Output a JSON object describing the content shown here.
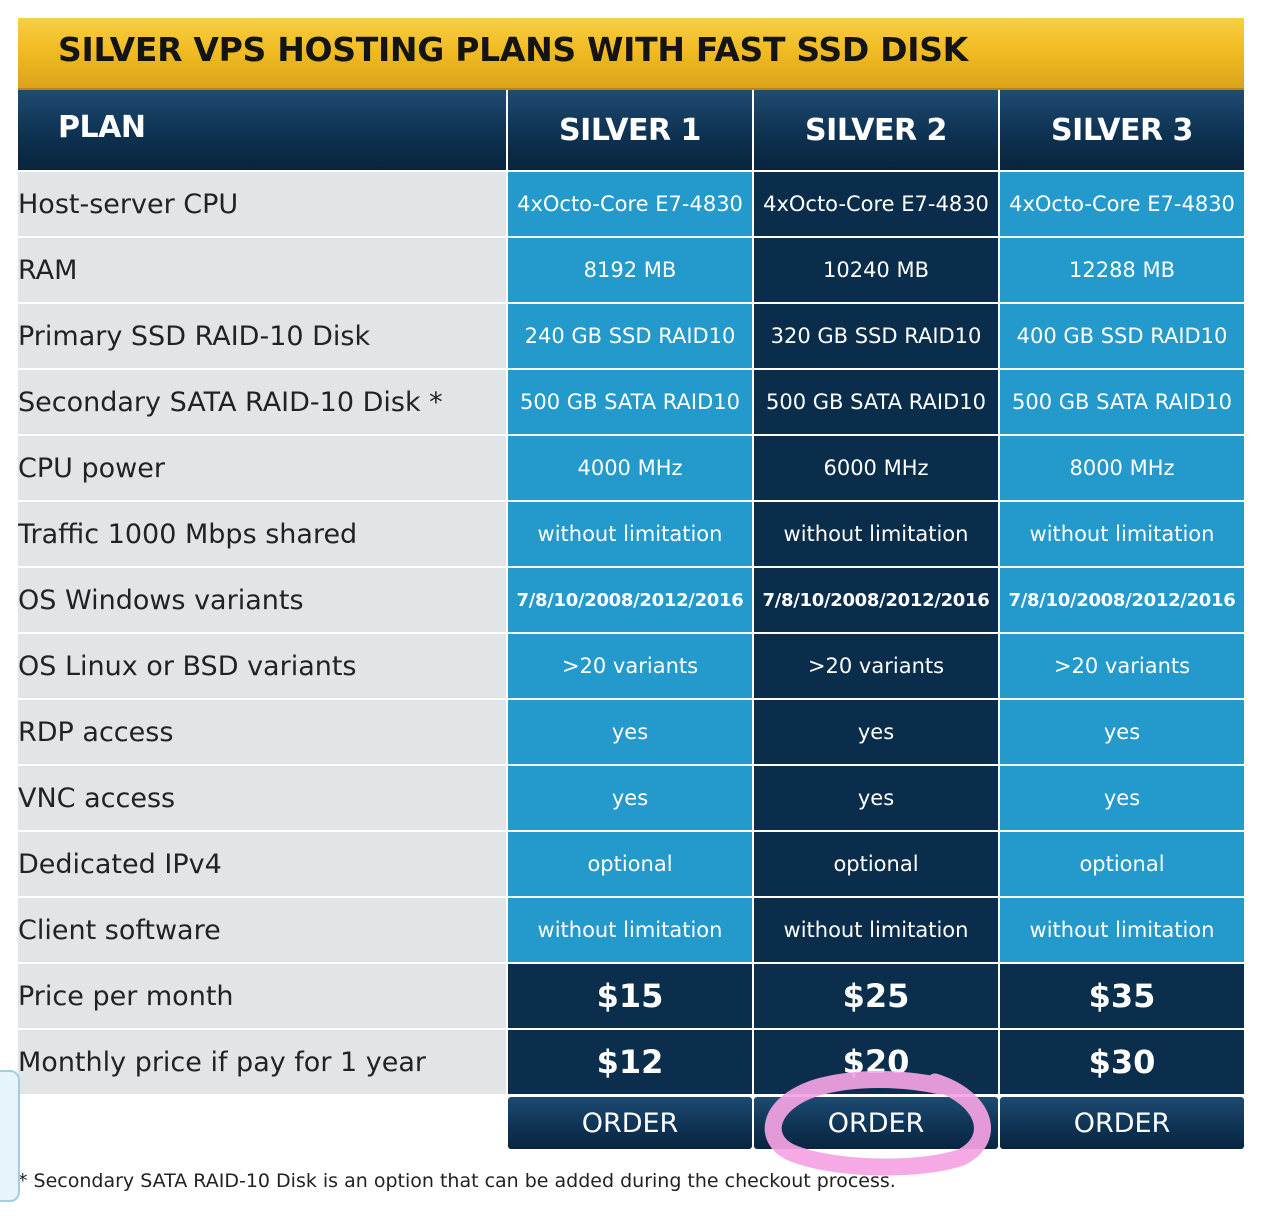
{
  "banner": {
    "title": "SILVER VPS HOSTING PLANS WITH FAST SSD DISK"
  },
  "table": {
    "plan_header": "PLAN",
    "plans": [
      "SILVER 1",
      "SILVER 2",
      "SILVER 3"
    ],
    "rows": [
      {
        "label": "Host-server CPU",
        "values": [
          "4xOcto-Core E7-4830",
          "4xOcto-Core E7-4830",
          "4xOcto-Core E7-4830"
        ]
      },
      {
        "label": "RAM",
        "values": [
          "8192 MB",
          "10240 MB",
          "12288 MB"
        ]
      },
      {
        "label": "Primary SSD RAID-10 Disk",
        "values": [
          "240 GB SSD RAID10",
          "320 GB SSD RAID10",
          "400 GB SSD RAID10"
        ]
      },
      {
        "label": "Secondary SATA RAID-10 Disk *",
        "values": [
          "500 GB SATA RAID10",
          "500 GB SATA RAID10",
          "500 GB SATA RAID10"
        ]
      },
      {
        "label": "CPU power",
        "values": [
          "4000 MHz",
          "6000 MHz",
          "8000 MHz"
        ]
      },
      {
        "label": "Traffic 1000 Mbps shared",
        "values": [
          "without limitation",
          "without limitation",
          "without limitation"
        ]
      },
      {
        "label": "OS Windows variants",
        "values": [
          "7/8/10/2008/2012/2016",
          "7/8/10/2008/2012/2016",
          "7/8/10/2008/2012/2016"
        ]
      },
      {
        "label": "OS Linux or BSD variants",
        "values": [
          ">20 variants",
          ">20 variants",
          ">20 variants"
        ]
      },
      {
        "label": "RDP access",
        "values": [
          "yes",
          "yes",
          "yes"
        ]
      },
      {
        "label": "VNC access",
        "values": [
          "yes",
          "yes",
          "yes"
        ]
      },
      {
        "label": "Dedicated IPv4",
        "values": [
          "optional",
          "optional",
          "optional"
        ]
      },
      {
        "label": "Client software",
        "values": [
          "without limitation",
          "without limitation",
          "without limitation"
        ]
      }
    ],
    "price_rows": [
      {
        "label": "Price per month",
        "values": [
          "$15",
          "$25",
          "$35"
        ]
      },
      {
        "label": "Monthly price if pay for 1 year",
        "values": [
          "$12",
          "$20",
          "$30"
        ]
      }
    ],
    "order_label": "ORDER"
  },
  "footnote": "* Secondary SATA RAID-10 Disk is an option that can be added during the checkout process.",
  "colors": {
    "banner_gold": "#f1bc23",
    "header_navy": "#0f3455",
    "cell_light_blue": "#2399cc",
    "cell_dark_navy": "#092d4b",
    "label_gray": "#e2e5e8",
    "annotation_pink": "#f5a3e3"
  }
}
